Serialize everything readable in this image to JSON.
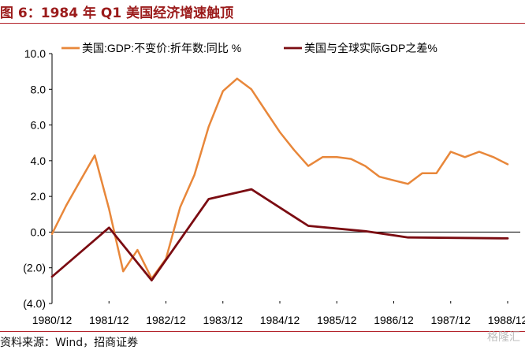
{
  "header": {
    "title": "图 6：1984 年 Q1 美国经济增速触顶"
  },
  "footer": {
    "source": "资料来源：Wind，招商证券",
    "watermark": "格隆汇"
  },
  "colors": {
    "series_1": "#E8873A",
    "series_2": "#7B0C12",
    "title": "#9B1B1B",
    "rule": "#B3222A"
  },
  "chart_data": {
    "type": "line",
    "title": "",
    "xlabel": "",
    "ylabel": "",
    "ylim": [
      -4.0,
      10.0
    ],
    "yticks": [
      10.0,
      8.0,
      6.0,
      4.0,
      2.0,
      0.0,
      -2.0,
      -4.0
    ],
    "ytick_labels": [
      "10.0",
      "8.0",
      "6.0",
      "4.0",
      "2.0",
      "0.0",
      "(2.0)",
      "(4.0)"
    ],
    "xtick_labels": [
      "1980/12",
      "1981/12",
      "1982/12",
      "1983/12",
      "1984/12",
      "1985/12",
      "1986/12",
      "1987/12",
      "1988/12"
    ],
    "legend_position": "top",
    "grid": false,
    "series": [
      {
        "name": "美国:GDP:不变价:折年数:同比 %",
        "color": "#E8873A",
        "x": [
          "1980/12",
          "1981/03",
          "1981/06",
          "1981/09",
          "1981/12",
          "1982/03",
          "1982/06",
          "1982/09",
          "1982/12",
          "1983/03",
          "1983/06",
          "1983/09",
          "1983/12",
          "1984/03",
          "1984/06",
          "1984/09",
          "1984/12",
          "1985/03",
          "1985/06",
          "1985/09",
          "1985/12",
          "1986/03",
          "1986/06",
          "1986/09",
          "1986/12",
          "1987/03",
          "1987/06",
          "1987/09",
          "1987/12",
          "1988/03",
          "1988/06",
          "1988/09",
          "1988/12"
        ],
        "values": [
          -0.1,
          1.5,
          2.9,
          4.3,
          1.3,
          -2.2,
          -1.0,
          -2.6,
          -1.5,
          1.4,
          3.2,
          5.9,
          7.9,
          8.6,
          8.0,
          6.8,
          5.6,
          4.6,
          3.7,
          4.2,
          4.2,
          4.1,
          3.7,
          3.1,
          2.9,
          2.7,
          3.3,
          3.3,
          4.5,
          4.2,
          4.5,
          4.2,
          3.8
        ]
      },
      {
        "name": "美国与全球实际GDP之差%",
        "color": "#7B0C12",
        "x": [
          "1980/12",
          "1981/12",
          "1982/09",
          "1983/09",
          "1984/06",
          "1985/06",
          "1986/06",
          "1987/03",
          "1988/12"
        ],
        "values": [
          -2.5,
          0.25,
          -2.7,
          1.85,
          2.4,
          0.35,
          0.05,
          -0.3,
          -0.35
        ]
      }
    ]
  }
}
